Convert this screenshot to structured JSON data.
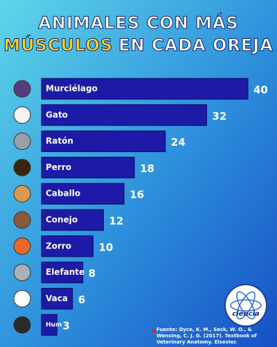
{
  "chart_data": {
    "type": "bar",
    "orientation": "horizontal",
    "title": {
      "line1": "ANIMALES CON MÁS",
      "highlight": "MÚSCULOS",
      "line2_rest": "EN CADA OREJA"
    },
    "categories": [
      "Murciélago",
      "Gato",
      "Ratón",
      "Perro",
      "Caballo",
      "Conejo",
      "Zorro",
      "Elefante",
      "Vaca",
      "Hum"
    ],
    "values": [
      40,
      32,
      24,
      18,
      16,
      12,
      10,
      8,
      6,
      3
    ],
    "color": "#1c1aa6",
    "source": "Fuente: Dyce, K. M., Sack, W. O., & Wensing, C. J. G. (2017). Textbook of Veterinary Anatomy. Elsevier.",
    "logo_text": "ciencia"
  }
}
